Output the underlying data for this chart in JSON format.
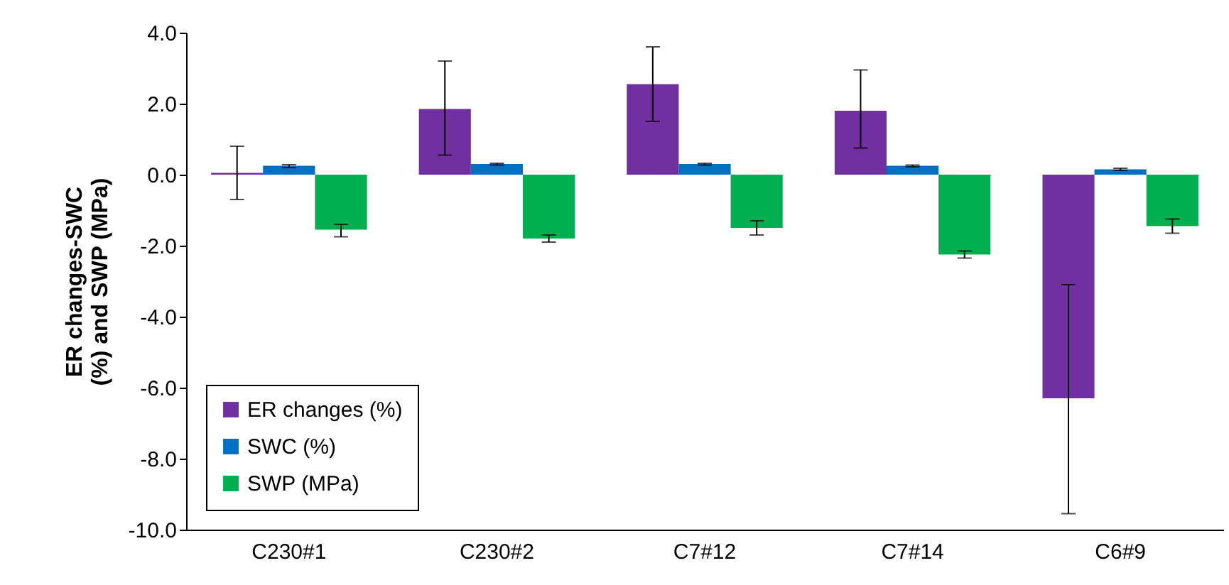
{
  "chart_data": {
    "type": "bar",
    "ylabel": "ER changes-SWC (%) and SWP (MPa)",
    "categories": [
      "C230#1",
      "C230#2",
      "C7#12",
      "C7#14",
      "C6#9"
    ],
    "series": [
      {
        "name": "ER changes (%)",
        "color": "#7030a0",
        "values": [
          0.05,
          1.85,
          2.55,
          1.8,
          -6.3
        ],
        "errors": [
          [
            -0.7,
            0.8
          ],
          [
            0.55,
            3.2
          ],
          [
            1.5,
            3.6
          ],
          [
            0.75,
            2.95
          ],
          [
            -9.55,
            -3.1
          ]
        ]
      },
      {
        "name": "SWC (%)",
        "color": "#0070c0",
        "values": [
          0.25,
          0.3,
          0.3,
          0.25,
          0.15
        ],
        "errors": [
          [
            0.2,
            0.28
          ],
          [
            0.27,
            0.32
          ],
          [
            0.27,
            0.32
          ],
          [
            0.22,
            0.27
          ],
          [
            0.12,
            0.18
          ]
        ]
      },
      {
        "name": "SWP (MPa)",
        "color": "#00b050",
        "values": [
          -1.55,
          -1.8,
          -1.5,
          -2.25,
          -1.45
        ],
        "errors": [
          [
            -1.75,
            -1.4
          ],
          [
            -1.9,
            -1.7
          ],
          [
            -1.7,
            -1.3
          ],
          [
            -2.35,
            -2.15
          ],
          [
            -1.65,
            -1.25
          ]
        ]
      }
    ],
    "ylim": [
      -10,
      4
    ],
    "yticks": [
      {
        "value": 4,
        "label": "4.0"
      },
      {
        "value": 2,
        "label": "2.0"
      },
      {
        "value": 0,
        "label": "0.0"
      },
      {
        "value": -2,
        "label": "-2.0"
      },
      {
        "value": -4,
        "label": "-4.0"
      },
      {
        "value": -6,
        "label": "-6.0"
      },
      {
        "value": -8,
        "label": "-8.0"
      },
      {
        "value": -10,
        "label": "-10.0"
      }
    ],
    "grid": false,
    "legend": "bottom left"
  }
}
